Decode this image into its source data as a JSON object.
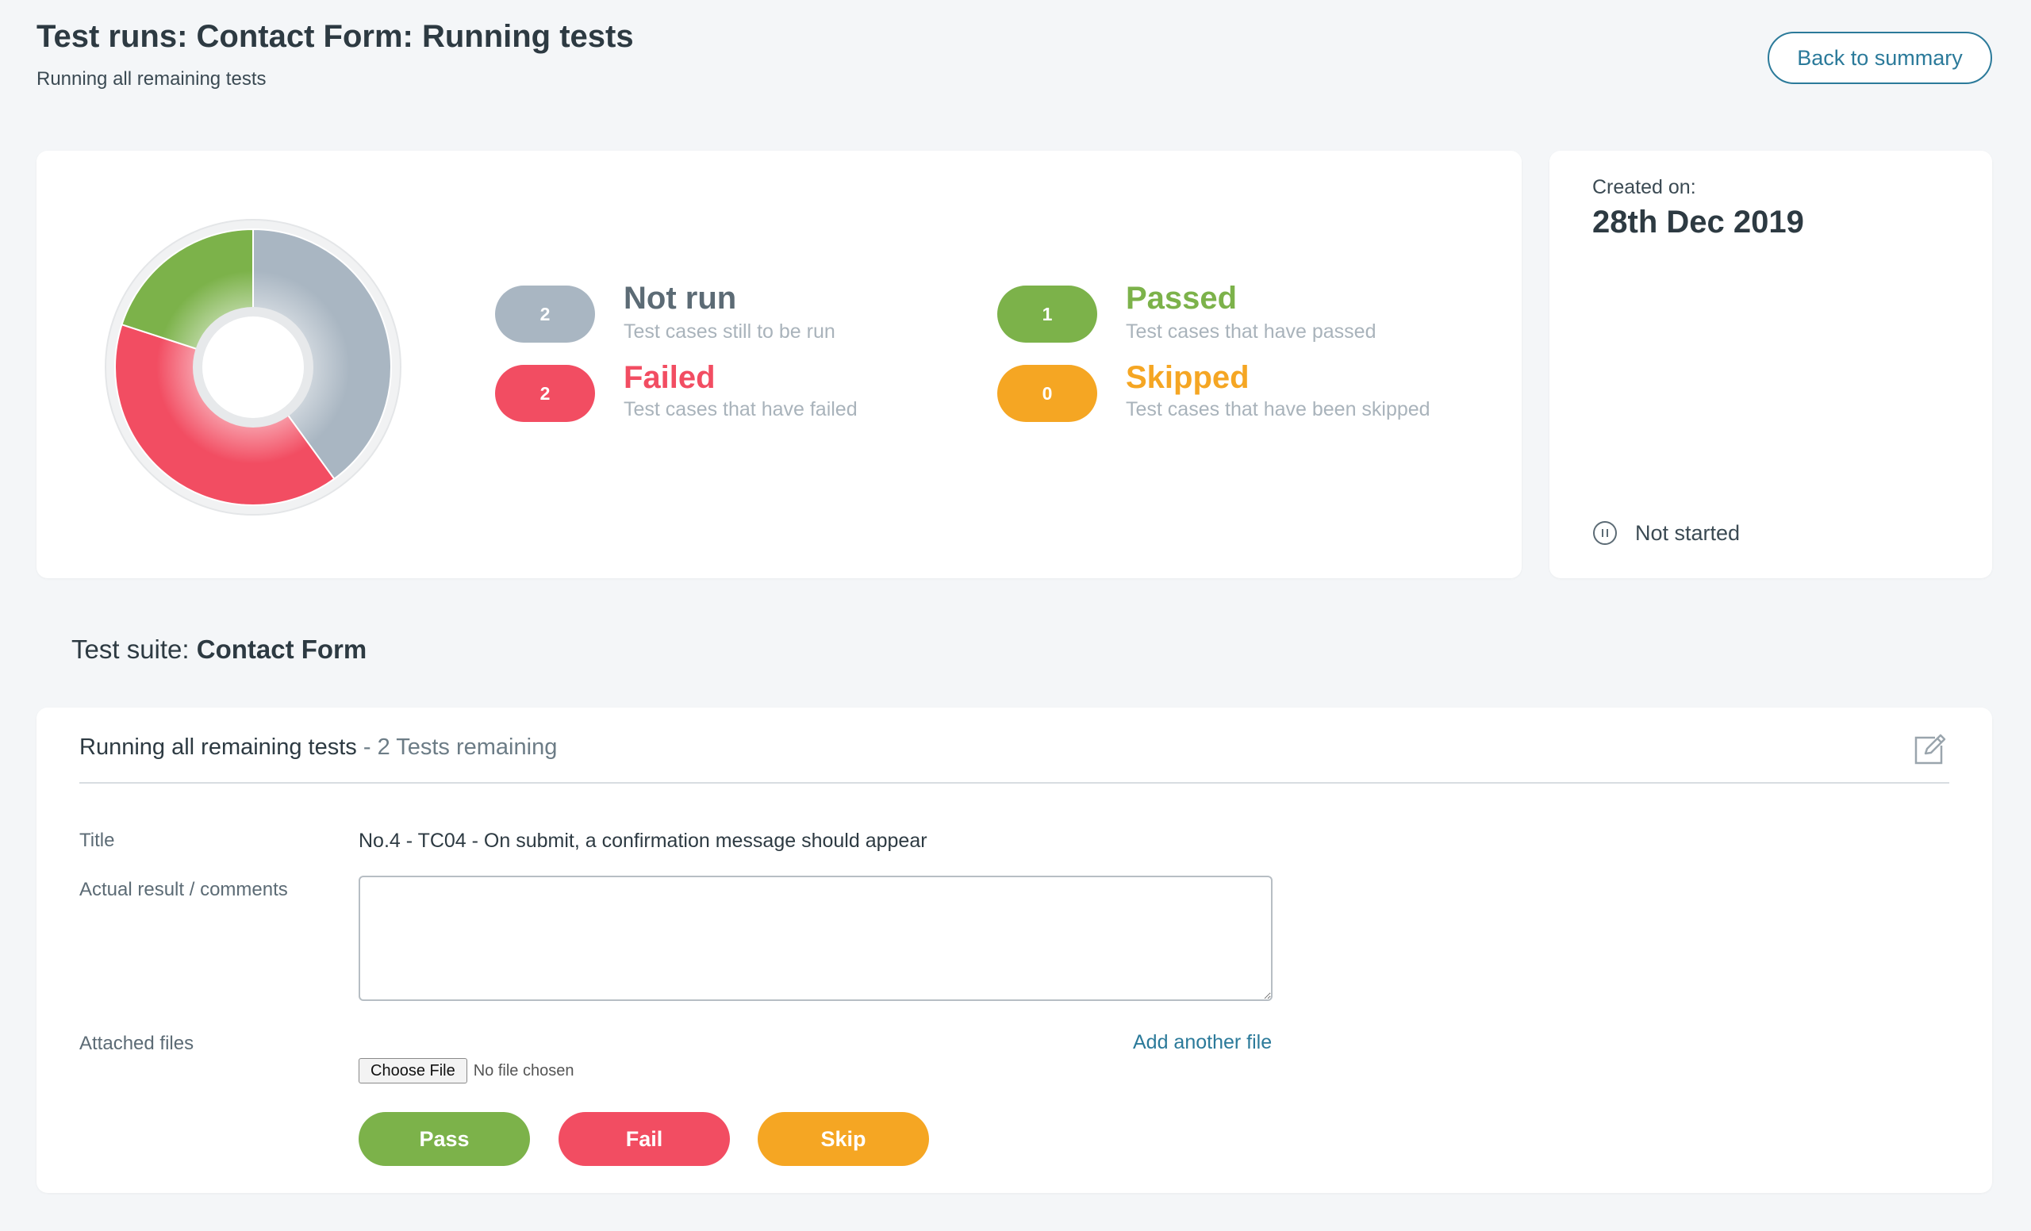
{
  "header": {
    "title": "Test runs: Contact Form: Running tests",
    "subtitle": "Running all remaining tests",
    "back_label": "Back to summary"
  },
  "colors": {
    "not_run": "#a9b6c2",
    "failed": "#f24d62",
    "passed": "#7cb24a",
    "skipped": "#f5a623",
    "link": "#2b7a9a"
  },
  "summary": {
    "not_run": {
      "count": "2",
      "label": "Not run",
      "description": "Test cases still to be run"
    },
    "failed": {
      "count": "2",
      "label": "Failed",
      "description": "Test cases that have failed"
    },
    "passed": {
      "count": "1",
      "label": "Passed",
      "description": "Test cases that have passed"
    },
    "skipped": {
      "count": "0",
      "label": "Skipped",
      "description": "Test cases that have been skipped"
    }
  },
  "chart_data": {
    "type": "pie",
    "categories": [
      "Not run",
      "Failed",
      "Passed",
      "Skipped"
    ],
    "values": [
      2,
      2,
      1,
      0
    ],
    "colors": [
      "#a9b6c2",
      "#f24d62",
      "#7cb24a",
      "#f5a623"
    ]
  },
  "meta": {
    "created_label": "Created on:",
    "created_date": "28th Dec 2019",
    "status_icon": "pause-circle-icon",
    "status": "Not started"
  },
  "suite": {
    "prefix": "Test suite: ",
    "name": "Contact Form"
  },
  "run": {
    "heading": "Running all remaining tests",
    "remaining": " - 2 Tests remaining",
    "edit_icon": "edit-icon",
    "title_label": "Title",
    "title_value": "No.4 - TC04 - On submit, a confirmation message should appear",
    "comments_label": "Actual result / comments",
    "comments_value": "",
    "files_label": "Attached files",
    "add_file_label": "Add another file",
    "choose_file_label": "Choose File",
    "no_file_label": "No file chosen",
    "pass_label": "Pass",
    "fail_label": "Fail",
    "skip_label": "Skip"
  }
}
